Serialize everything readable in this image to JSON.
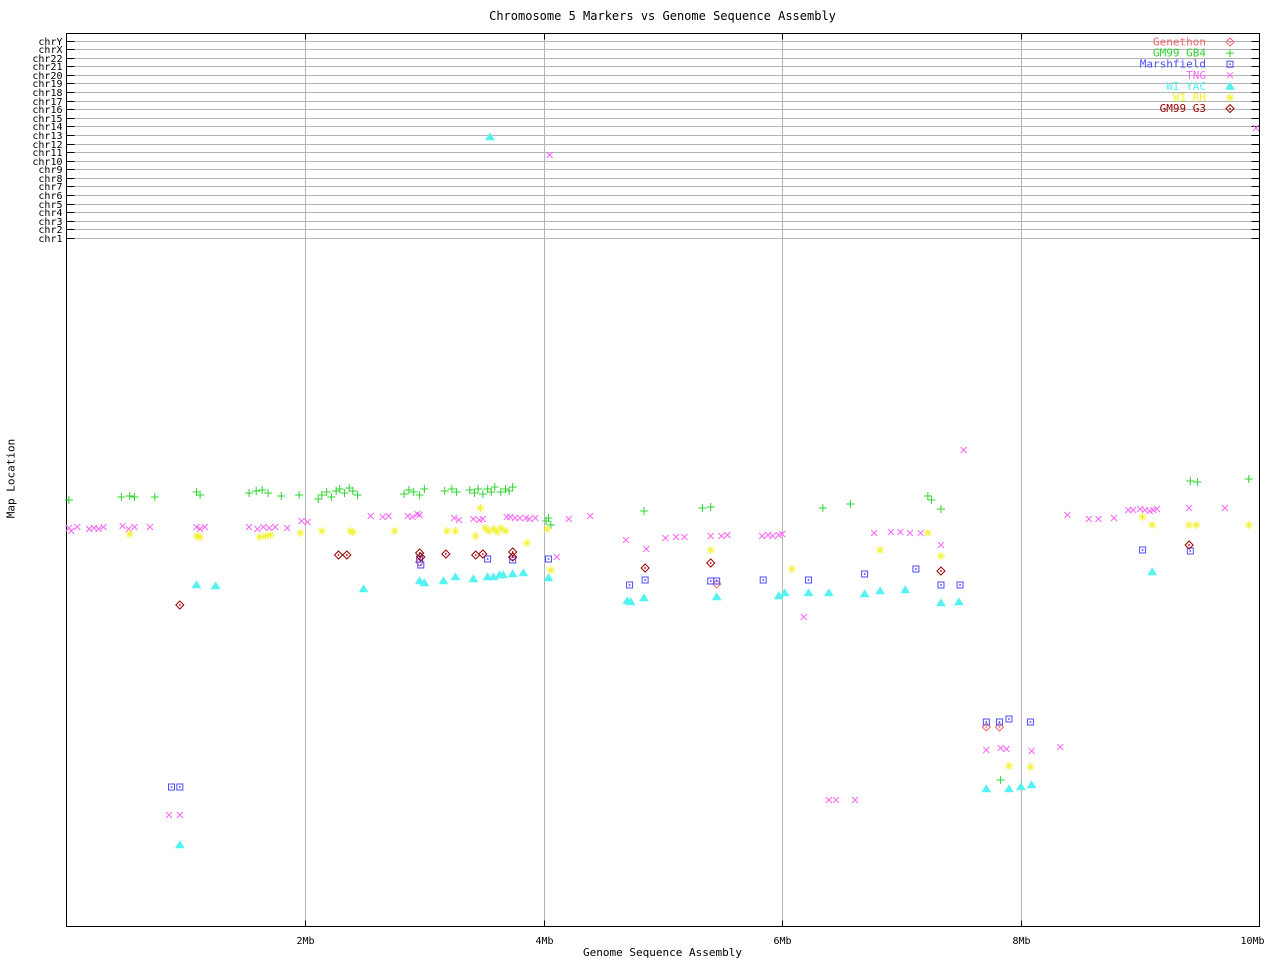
{
  "title": "Chromosome 5 Markers vs Genome Sequence Assembly",
  "axes": {
    "x_label": "Genome Sequence Assembly",
    "y_label": "Map Location",
    "x_ticks": [
      {
        "mb": 2,
        "label": "2Mb"
      },
      {
        "mb": 4,
        "label": "4Mb"
      },
      {
        "mb": 6,
        "label": "6Mb"
      },
      {
        "mb": 8,
        "label": "8Mb"
      },
      {
        "mb": 10,
        "label": "10Mb"
      }
    ]
  },
  "chromosome_rows": [
    "chrY",
    "chrX",
    "chr22",
    "chr21",
    "chr20",
    "chr19",
    "chr18",
    "chr17",
    "chr16",
    "chr15",
    "chr14",
    "chr13",
    "chr12",
    "chr11",
    "chr10",
    "chr9",
    "chr8",
    "chr7",
    "chr6",
    "chr5",
    "chr4",
    "chr3",
    "chr2",
    "chr1"
  ],
  "colors": {
    "grid": "#b4b4b4",
    "frame": "#000000"
  },
  "chart_data": {
    "type": "scatter",
    "title": "Chromosome 5 Markers vs Genome Sequence Assembly",
    "xlabel": "Genome Sequence Assembly",
    "ylabel": "Map Location",
    "xlim": [
      0,
      10
    ],
    "x_unit": "Mb",
    "y_note": "No numeric y tick labels; y given as screen pixels (33=top frame, 926=bottom frame). Rows chrY..chr1 are gridlines at top of plot.",
    "legend_position": "top-right-inside",
    "grid": "x ticks every 2Mb (gray vertical lines); one gray horizontal line per chromosome row",
    "series": [
      {
        "name": "Genethon",
        "marker": "diamond-dot",
        "color": "#f26666",
        "points": [
          [
            2.96,
            562
          ],
          [
            5.45,
            584
          ],
          [
            7.71,
            727
          ],
          [
            7.82,
            727
          ]
        ]
      },
      {
        "name": "GM99 GB4",
        "marker": "plus",
        "color": "#2fd42f",
        "points": [
          [
            0.02,
            500
          ],
          [
            0.46,
            497
          ],
          [
            0.53,
            496
          ],
          [
            0.57,
            497
          ],
          [
            0.74,
            497
          ],
          [
            1.09,
            492
          ],
          [
            1.12,
            495
          ],
          [
            1.53,
            493
          ],
          [
            1.59,
            491
          ],
          [
            1.64,
            490
          ],
          [
            1.69,
            493
          ],
          [
            1.8,
            496
          ],
          [
            1.95,
            495
          ],
          [
            2.11,
            499
          ],
          [
            2.14,
            495
          ],
          [
            2.18,
            492
          ],
          [
            2.22,
            497
          ],
          [
            2.26,
            491
          ],
          [
            2.29,
            489
          ],
          [
            2.33,
            493
          ],
          [
            2.37,
            488
          ],
          [
            2.4,
            491
          ],
          [
            2.44,
            495
          ],
          [
            2.83,
            494
          ],
          [
            2.87,
            490
          ],
          [
            2.91,
            492
          ],
          [
            2.96,
            495
          ],
          [
            3.0,
            489
          ],
          [
            3.17,
            491
          ],
          [
            3.23,
            489
          ],
          [
            3.27,
            492
          ],
          [
            3.38,
            490
          ],
          [
            3.42,
            493
          ],
          [
            3.45,
            489
          ],
          [
            3.49,
            494
          ],
          [
            3.53,
            489
          ],
          [
            3.56,
            492
          ],
          [
            3.59,
            487
          ],
          [
            3.64,
            492
          ],
          [
            3.68,
            489
          ],
          [
            3.71,
            491
          ],
          [
            3.74,
            487
          ],
          [
            4.02,
            521
          ],
          [
            4.04,
            518
          ],
          [
            4.06,
            525
          ],
          [
            4.84,
            511
          ],
          [
            5.33,
            508
          ],
          [
            5.4,
            507
          ],
          [
            6.34,
            508
          ],
          [
            6.57,
            504
          ],
          [
            7.22,
            496
          ],
          [
            7.25,
            500
          ],
          [
            7.33,
            509
          ],
          [
            7.83,
            780
          ],
          [
            9.42,
            481
          ],
          [
            9.48,
            482
          ],
          [
            9.91,
            479
          ]
        ]
      },
      {
        "name": "Marshfield",
        "marker": "square-dot",
        "color": "#4c4cff",
        "points": [
          [
            0.88,
            787
          ],
          [
            0.95,
            787
          ],
          [
            2.96,
            559
          ],
          [
            2.97,
            565
          ],
          [
            3.53,
            559
          ],
          [
            3.74,
            560
          ],
          [
            4.04,
            559
          ],
          [
            4.72,
            585
          ],
          [
            4.85,
            580
          ],
          [
            5.4,
            581
          ],
          [
            5.45,
            581
          ],
          [
            5.84,
            580
          ],
          [
            6.22,
            580
          ],
          [
            6.69,
            574
          ],
          [
            7.12,
            569
          ],
          [
            7.33,
            585
          ],
          [
            7.49,
            585
          ],
          [
            7.71,
            722
          ],
          [
            7.82,
            722
          ],
          [
            7.9,
            719
          ],
          [
            8.08,
            722
          ],
          [
            9.02,
            550
          ],
          [
            9.42,
            551
          ]
        ]
      },
      {
        "name": "TNG",
        "marker": "cross",
        "color": "#f966f9",
        "points": [
          [
            0.02,
            528
          ],
          [
            0.04,
            531
          ],
          [
            0.09,
            527
          ],
          [
            0.19,
            529
          ],
          [
            0.23,
            528
          ],
          [
            0.27,
            529
          ],
          [
            0.31,
            527
          ],
          [
            0.47,
            526
          ],
          [
            0.52,
            529
          ],
          [
            0.57,
            527
          ],
          [
            0.7,
            527
          ],
          [
            0.86,
            815
          ],
          [
            0.95,
            815
          ],
          [
            1.09,
            527
          ],
          [
            1.12,
            529
          ],
          [
            1.16,
            527
          ],
          [
            1.53,
            527
          ],
          [
            1.6,
            529
          ],
          [
            1.65,
            527
          ],
          [
            1.7,
            528
          ],
          [
            1.75,
            527
          ],
          [
            1.85,
            528
          ],
          [
            1.97,
            521
          ],
          [
            2.02,
            522
          ],
          [
            2.55,
            516
          ],
          [
            2.65,
            517
          ],
          [
            2.7,
            516
          ],
          [
            2.86,
            516
          ],
          [
            2.9,
            517
          ],
          [
            2.94,
            514
          ],
          [
            2.96,
            515
          ],
          [
            3.25,
            518
          ],
          [
            3.29,
            520
          ],
          [
            3.41,
            519
          ],
          [
            3.46,
            520
          ],
          [
            3.49,
            519
          ],
          [
            3.69,
            517
          ],
          [
            3.72,
            517
          ],
          [
            3.76,
            518
          ],
          [
            3.8,
            518
          ],
          [
            3.85,
            518
          ],
          [
            3.88,
            519
          ],
          [
            3.93,
            518
          ],
          [
            4.05,
            155
          ],
          [
            4.11,
            557
          ],
          [
            4.21,
            519
          ],
          [
            4.39,
            516
          ],
          [
            4.69,
            540
          ],
          [
            4.86,
            549
          ],
          [
            5.02,
            538
          ],
          [
            5.11,
            537
          ],
          [
            5.18,
            537
          ],
          [
            5.4,
            536
          ],
          [
            5.49,
            536
          ],
          [
            5.54,
            535
          ],
          [
            5.83,
            536
          ],
          [
            5.88,
            535
          ],
          [
            5.92,
            536
          ],
          [
            5.97,
            535
          ],
          [
            6.0,
            534
          ],
          [
            6.18,
            617
          ],
          [
            6.39,
            800
          ],
          [
            6.45,
            800
          ],
          [
            6.61,
            800
          ],
          [
            6.77,
            533
          ],
          [
            6.91,
            532
          ],
          [
            6.99,
            532
          ],
          [
            7.07,
            533
          ],
          [
            7.16,
            533
          ],
          [
            7.33,
            545
          ],
          [
            7.52,
            450
          ],
          [
            7.71,
            750
          ],
          [
            7.83,
            748
          ],
          [
            7.88,
            749
          ],
          [
            8.09,
            751
          ],
          [
            8.33,
            747
          ],
          [
            8.39,
            515
          ],
          [
            8.57,
            519
          ],
          [
            8.65,
            519
          ],
          [
            8.78,
            518
          ],
          [
            8.9,
            510
          ],
          [
            8.94,
            510
          ],
          [
            9.0,
            509
          ],
          [
            9.04,
            510
          ],
          [
            9.08,
            511
          ],
          [
            9.11,
            510
          ],
          [
            9.14,
            509
          ],
          [
            9.41,
            508
          ],
          [
            9.71,
            508
          ],
          [
            9.97,
            128
          ]
        ]
      },
      {
        "name": "WI YAC",
        "marker": "triangle",
        "color": "#55f2f2",
        "points": [
          [
            1.09,
            585
          ],
          [
            1.25,
            586
          ],
          [
            2.49,
            589
          ],
          [
            2.96,
            581
          ],
          [
            3.0,
            583
          ],
          [
            3.16,
            581
          ],
          [
            3.26,
            577
          ],
          [
            3.41,
            579
          ],
          [
            3.53,
            577
          ],
          [
            3.55,
            137
          ],
          [
            3.58,
            577
          ],
          [
            3.63,
            575
          ],
          [
            3.66,
            575
          ],
          [
            3.74,
            574
          ],
          [
            3.83,
            573
          ],
          [
            4.04,
            578
          ],
          [
            4.7,
            601
          ],
          [
            4.73,
            602
          ],
          [
            4.84,
            598
          ],
          [
            5.45,
            597
          ],
          [
            5.97,
            596
          ],
          [
            6.02,
            593
          ],
          [
            6.22,
            593
          ],
          [
            6.39,
            593
          ],
          [
            6.69,
            594
          ],
          [
            6.82,
            591
          ],
          [
            7.03,
            590
          ],
          [
            7.33,
            603
          ],
          [
            7.48,
            602
          ],
          [
            7.71,
            789
          ],
          [
            7.9,
            789
          ],
          [
            8.0,
            787
          ],
          [
            8.09,
            785
          ],
          [
            9.1,
            572
          ],
          [
            0.95,
            845
          ]
        ]
      },
      {
        "name": "WI RH",
        "marker": "star",
        "color": "#f2f22d",
        "points": [
          [
            0.53,
            534
          ],
          [
            1.09,
            536
          ],
          [
            1.12,
            537
          ],
          [
            1.62,
            537
          ],
          [
            1.67,
            536
          ],
          [
            1.71,
            535
          ],
          [
            1.96,
            533
          ],
          [
            2.14,
            531
          ],
          [
            2.38,
            531
          ],
          [
            2.4,
            532
          ],
          [
            2.75,
            531
          ],
          [
            3.19,
            531
          ],
          [
            3.26,
            531
          ],
          [
            3.43,
            536
          ],
          [
            3.47,
            508
          ],
          [
            3.51,
            528
          ],
          [
            3.54,
            531
          ],
          [
            3.58,
            529
          ],
          [
            3.61,
            532
          ],
          [
            3.64,
            528
          ],
          [
            3.68,
            531
          ],
          [
            3.86,
            543
          ],
          [
            4.03,
            529
          ],
          [
            4.06,
            570
          ],
          [
            5.4,
            550
          ],
          [
            6.08,
            569
          ],
          [
            6.82,
            550
          ],
          [
            7.22,
            533
          ],
          [
            7.33,
            556
          ],
          [
            7.9,
            766
          ],
          [
            8.08,
            767
          ],
          [
            9.02,
            517
          ],
          [
            9.1,
            525
          ],
          [
            9.41,
            525
          ],
          [
            9.47,
            525
          ],
          [
            9.91,
            525
          ]
        ]
      },
      {
        "name": "GM99 G3",
        "marker": "diamond-dot",
        "color": "#990000",
        "points": [
          [
            0.95,
            605
          ],
          [
            2.28,
            555
          ],
          [
            2.35,
            555
          ],
          [
            2.96,
            553
          ],
          [
            2.97,
            557
          ],
          [
            3.18,
            554
          ],
          [
            3.43,
            555
          ],
          [
            3.49,
            554
          ],
          [
            3.74,
            552
          ],
          [
            3.74,
            557
          ],
          [
            4.85,
            568
          ],
          [
            5.4,
            563
          ],
          [
            7.33,
            571
          ],
          [
            9.41,
            545
          ]
        ]
      }
    ]
  }
}
